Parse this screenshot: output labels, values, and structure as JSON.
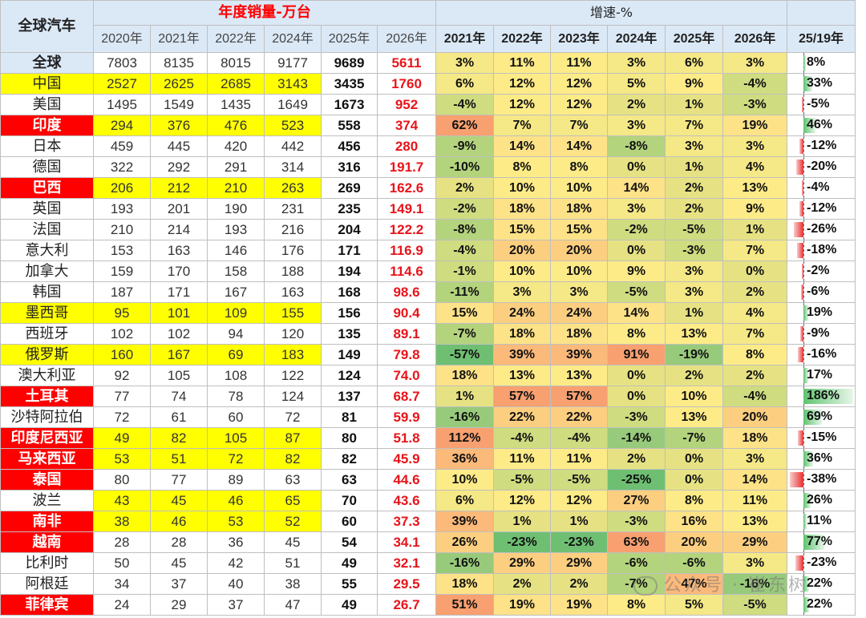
{
  "header": {
    "corner": "全球汽车",
    "sales_group": "年度销量-万台",
    "growth_group": "增速-%",
    "sales_years": [
      "2020年",
      "2021年",
      "2022年",
      "2024年",
      "2025年",
      "2026年"
    ],
    "growth_years": [
      "2021年",
      "2022年",
      "2023年",
      "2024年",
      "2025年",
      "2026年"
    ],
    "ratio": "25/19年"
  },
  "rows": [
    {
      "country": "全球",
      "hl": "blue",
      "sales": [
        "7803",
        "8135",
        "8015",
        "9177",
        "9689",
        "5611"
      ],
      "growth": [
        "3%",
        "11%",
        "11%",
        "3%",
        "6%",
        "3%"
      ],
      "ratio": "8%",
      "ratio_value": 8
    },
    {
      "country": "中国",
      "hl": "yellow",
      "sales": [
        "2527",
        "2625",
        "2685",
        "3143",
        "3435",
        "1760"
      ],
      "growth": [
        "6%",
        "12%",
        "12%",
        "5%",
        "9%",
        "-4%"
      ],
      "ratio": "33%",
      "ratio_value": 33
    },
    {
      "country": "美国",
      "hl": "white",
      "sales": [
        "1495",
        "1549",
        "1435",
        "1649",
        "1673",
        "952"
      ],
      "growth": [
        "-4%",
        "12%",
        "12%",
        "2%",
        "1%",
        "-3%"
      ],
      "ratio": "-5%",
      "ratio_value": -5
    },
    {
      "country": "印度",
      "hl": "red",
      "sales": [
        "294",
        "376",
        "476",
        "523",
        "558",
        "374"
      ],
      "growth": [
        "62%",
        "7%",
        "7%",
        "3%",
        "7%",
        "19%"
      ],
      "ratio": "46%",
      "ratio_value": 46
    },
    {
      "country": "日本",
      "hl": "white",
      "sales": [
        "459",
        "445",
        "420",
        "442",
        "456",
        "280"
      ],
      "growth": [
        "-9%",
        "14%",
        "14%",
        "-8%",
        "3%",
        "3%"
      ],
      "ratio": "-12%",
      "ratio_value": -12
    },
    {
      "country": "德国",
      "hl": "white",
      "sales": [
        "322",
        "292",
        "291",
        "314",
        "316",
        "191.7"
      ],
      "growth": [
        "-10%",
        "8%",
        "8%",
        "0%",
        "1%",
        "4%"
      ],
      "ratio": "-20%",
      "ratio_value": -20
    },
    {
      "country": "巴西",
      "hl": "red",
      "sales": [
        "206",
        "212",
        "210",
        "263",
        "269",
        "162.6"
      ],
      "growth": [
        "2%",
        "10%",
        "10%",
        "14%",
        "2%",
        "13%"
      ],
      "ratio": "-4%",
      "ratio_value": -4
    },
    {
      "country": "英国",
      "hl": "white",
      "sales": [
        "193",
        "201",
        "190",
        "231",
        "235",
        "149.1"
      ],
      "growth": [
        "-2%",
        "18%",
        "18%",
        "3%",
        "2%",
        "9%"
      ],
      "ratio": "-12%",
      "ratio_value": -12
    },
    {
      "country": "法国",
      "hl": "white",
      "sales": [
        "210",
        "214",
        "193",
        "216",
        "204",
        "122.2"
      ],
      "growth": [
        "-8%",
        "15%",
        "15%",
        "-2%",
        "-5%",
        "1%"
      ],
      "ratio": "-26%",
      "ratio_value": -26
    },
    {
      "country": "意大利",
      "hl": "white",
      "sales": [
        "153",
        "163",
        "146",
        "176",
        "171",
        "116.9"
      ],
      "growth": [
        "-4%",
        "20%",
        "20%",
        "0%",
        "-3%",
        "7%"
      ],
      "ratio": "-18%",
      "ratio_value": -18
    },
    {
      "country": "加拿大",
      "hl": "white",
      "sales": [
        "159",
        "170",
        "158",
        "188",
        "194",
        "114.6"
      ],
      "growth": [
        "-1%",
        "10%",
        "10%",
        "9%",
        "3%",
        "0%"
      ],
      "ratio": "-2%",
      "ratio_value": -2
    },
    {
      "country": "韩国",
      "hl": "white",
      "sales": [
        "187",
        "171",
        "167",
        "163",
        "168",
        "98.6"
      ],
      "growth": [
        "-11%",
        "3%",
        "3%",
        "-5%",
        "3%",
        "2%"
      ],
      "ratio": "-6%",
      "ratio_value": -6
    },
    {
      "country": "墨西哥",
      "hl": "yellow",
      "sales": [
        "95",
        "101",
        "109",
        "155",
        "156",
        "90.4"
      ],
      "growth": [
        "15%",
        "24%",
        "24%",
        "14%",
        "1%",
        "4%"
      ],
      "ratio": "19%",
      "ratio_value": 19
    },
    {
      "country": "西班牙",
      "hl": "white",
      "sales": [
        "102",
        "102",
        "94",
        "120",
        "135",
        "89.1"
      ],
      "growth": [
        "-7%",
        "18%",
        "18%",
        "8%",
        "13%",
        "7%"
      ],
      "ratio": "-9%",
      "ratio_value": -9
    },
    {
      "country": "俄罗斯",
      "hl": "yellow",
      "sales": [
        "160",
        "167",
        "69",
        "183",
        "149",
        "79.8"
      ],
      "growth": [
        "-57%",
        "39%",
        "39%",
        "91%",
        "-19%",
        "8%"
      ],
      "ratio": "-16%",
      "ratio_value": -16
    },
    {
      "country": "澳大利亚",
      "hl": "white",
      "sales": [
        "92",
        "105",
        "108",
        "122",
        "124",
        "74.0"
      ],
      "growth": [
        "18%",
        "13%",
        "13%",
        "0%",
        "2%",
        "2%"
      ],
      "ratio": "17%",
      "ratio_value": 17
    },
    {
      "country": "土耳其",
      "hl": "red",
      "sales": [
        "77",
        "74",
        "78",
        "124",
        "137",
        "68.7"
      ],
      "growth": [
        "1%",
        "57%",
        "57%",
        "0%",
        "10%",
        "-4%"
      ],
      "ratio": "186%",
      "ratio_value": 186
    },
    {
      "country": "沙特阿拉伯",
      "hl": "white",
      "sales": [
        "72",
        "61",
        "60",
        "72",
        "81",
        "59.9"
      ],
      "growth": [
        "-16%",
        "22%",
        "22%",
        "-3%",
        "13%",
        "20%"
      ],
      "ratio": "69%",
      "ratio_value": 69
    },
    {
      "country": "印度尼西亚",
      "hl": "red",
      "sales": [
        "49",
        "82",
        "105",
        "87",
        "80",
        "51.8"
      ],
      "growth": [
        "112%",
        "-4%",
        "-4%",
        "-14%",
        "-7%",
        "18%"
      ],
      "ratio": "-15%",
      "ratio_value": -15
    },
    {
      "country": "马来西亚",
      "hl": "red",
      "sales": [
        "53",
        "51",
        "72",
        "82",
        "82",
        "45.9"
      ],
      "growth": [
        "36%",
        "11%",
        "11%",
        "2%",
        "0%",
        "3%"
      ],
      "ratio": "36%",
      "ratio_value": 36
    },
    {
      "country": "泰国",
      "hl": "red",
      "sales": [
        "80",
        "77",
        "89",
        "63",
        "63",
        "44.6"
      ],
      "growth": [
        "10%",
        "-5%",
        "-5%",
        "-25%",
        "0%",
        "14%"
      ],
      "ratio": "-38%",
      "ratio_value": -38
    },
    {
      "country": "波兰",
      "hl": "white",
      "sales": [
        "43",
        "45",
        "46",
        "65",
        "70",
        "43.6"
      ],
      "growth": [
        "6%",
        "12%",
        "12%",
        "27%",
        "8%",
        "11%"
      ],
      "ratio": "26%",
      "ratio_value": 26
    },
    {
      "country": "南非",
      "hl": "red",
      "sales": [
        "38",
        "46",
        "53",
        "52",
        "60",
        "37.3"
      ],
      "growth": [
        "39%",
        "1%",
        "1%",
        "-3%",
        "16%",
        "13%"
      ],
      "ratio": "11%",
      "ratio_value": 11
    },
    {
      "country": "越南",
      "hl": "red",
      "sales": [
        "28",
        "28",
        "36",
        "45",
        "54",
        "34.1"
      ],
      "growth": [
        "26%",
        "-23%",
        "-23%",
        "63%",
        "20%",
        "29%"
      ],
      "ratio": "77%",
      "ratio_value": 77
    },
    {
      "country": "比利时",
      "hl": "white",
      "sales": [
        "50",
        "45",
        "42",
        "51",
        "49",
        "32.1"
      ],
      "growth": [
        "-16%",
        "29%",
        "29%",
        "-6%",
        "-6%",
        "3%"
      ],
      "ratio": "-23%",
      "ratio_value": -23
    },
    {
      "country": "阿根廷",
      "hl": "white",
      "sales": [
        "34",
        "37",
        "40",
        "38",
        "55",
        "29.5"
      ],
      "growth": [
        "18%",
        "2%",
        "2%",
        "-7%",
        "47%",
        "-16%"
      ],
      "ratio": "22%",
      "ratio_value": 22
    },
    {
      "country": "菲律宾",
      "hl": "red",
      "sales": [
        "24",
        "29",
        "37",
        "47",
        "49",
        "26.7"
      ],
      "growth": [
        "51%",
        "19%",
        "19%",
        "8%",
        "5%",
        "-5%"
      ],
      "ratio": "22%",
      "ratio_value": 22
    }
  ],
  "yellow_sales_rows": [
    1,
    3,
    6,
    12,
    14,
    18,
    19,
    21,
    22
  ],
  "colors": {
    "red": "#ff0000",
    "yellow": "#ffff00",
    "header_blue": "#dbe9f7",
    "neg_bar": "#e83030",
    "pos_bar": "#5fc46f",
    "red_text": "#e8141b"
  },
  "watermark": "公众号 · 崔东树"
}
